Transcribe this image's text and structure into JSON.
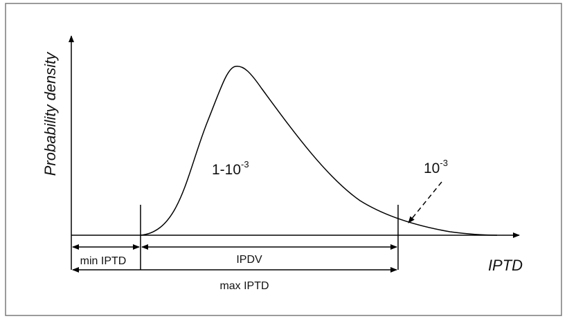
{
  "diagram": {
    "y_axis_label": "Probability density",
    "x_axis_label": "IPTD",
    "main_region": {
      "base": "1-10",
      "exponent": "-3"
    },
    "tail_region": {
      "base": "10",
      "exponent": "-3"
    },
    "min_label": "min IPTD",
    "ipdv_label": "IPDV",
    "max_label": "max IPTD"
  },
  "colors": {
    "line": "#000000",
    "frame": "#7a7a7a",
    "background": "#ffffff"
  }
}
